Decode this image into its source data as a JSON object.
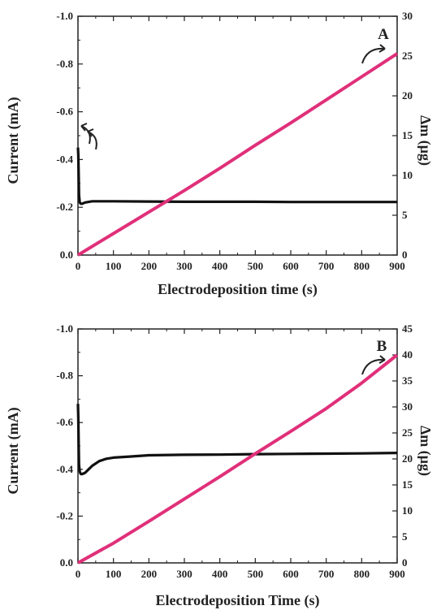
{
  "chart_data": [
    {
      "panel": "A",
      "type": "line",
      "xlabel": "Electrodeposition time (s)",
      "ylabel_left": "Current (mA)",
      "ylabel_right": "Δm (μg)",
      "xlim": [
        0,
        900
      ],
      "ylim_left": [
        0.0,
        -1.0
      ],
      "ylim_right": [
        0,
        30
      ],
      "x_ticks": [
        "0",
        "100",
        "200",
        "300",
        "400",
        "500",
        "600",
        "700",
        "800",
        "900"
      ],
      "y_left_ticks": [
        "-1.0",
        "-0.8",
        "-0.6",
        "-0.4",
        "-0.2",
        "0.0"
      ],
      "y_right_ticks": [
        "30",
        "25",
        "20",
        "15",
        "10",
        "5",
        "0"
      ],
      "series": [
        {
          "axis": "left",
          "color": "#111111",
          "x": [
            0,
            1,
            2,
            3,
            5,
            8,
            12,
            20,
            40,
            60,
            100,
            200,
            300,
            400,
            500,
            600,
            700,
            800,
            900
          ],
          "y": [
            -0.45,
            -0.42,
            -0.33,
            -0.25,
            -0.22,
            -0.215,
            -0.215,
            -0.22,
            -0.225,
            -0.225,
            -0.225,
            -0.224,
            -0.223,
            -0.223,
            -0.223,
            -0.222,
            -0.222,
            -0.222,
            -0.222
          ]
        },
        {
          "axis": "right",
          "color": "#e0307a",
          "x": [
            0,
            100,
            200,
            300,
            400,
            500,
            600,
            700,
            800,
            900
          ],
          "y": [
            0,
            2.7,
            5.4,
            8.1,
            10.9,
            13.8,
            16.6,
            19.5,
            22.4,
            25.3
          ]
        }
      ]
    },
    {
      "panel": "B",
      "type": "line",
      "xlabel": "Electrodeposition Time (s)",
      "ylabel_left": "Current (mA)",
      "ylabel_right": "Δm (μg)",
      "xlim": [
        0,
        900
      ],
      "ylim_left": [
        0.0,
        -1.0
      ],
      "ylim_right": [
        0,
        45
      ],
      "x_ticks": [
        "0",
        "100",
        "200",
        "300",
        "400",
        "500",
        "600",
        "700",
        "800",
        "900"
      ],
      "y_left_ticks": [
        "-1.0",
        "-0.8",
        "-0.6",
        "-0.4",
        "-0.2",
        "0.0"
      ],
      "y_right_ticks": [
        "45",
        "40",
        "35",
        "30",
        "25",
        "20",
        "15",
        "10",
        "5",
        "0"
      ],
      "series": [
        {
          "axis": "left",
          "color": "#111111",
          "x": [
            0,
            1,
            2,
            3,
            5,
            8,
            12,
            20,
            30,
            40,
            60,
            80,
            100,
            150,
            200,
            300,
            400,
            500,
            600,
            700,
            800,
            900
          ],
          "y": [
            -0.68,
            -0.62,
            -0.5,
            -0.42,
            -0.39,
            -0.38,
            -0.38,
            -0.385,
            -0.4,
            -0.415,
            -0.435,
            -0.445,
            -0.45,
            -0.455,
            -0.46,
            -0.462,
            -0.463,
            -0.465,
            -0.466,
            -0.467,
            -0.468,
            -0.47
          ]
        },
        {
          "axis": "right",
          "color": "#e0307a",
          "x": [
            0,
            100,
            200,
            300,
            400,
            500,
            600,
            700,
            800,
            900
          ],
          "y": [
            0,
            3.8,
            8.0,
            12.3,
            16.6,
            21.0,
            25.3,
            29.7,
            34.6,
            40.0
          ]
        }
      ]
    }
  ]
}
